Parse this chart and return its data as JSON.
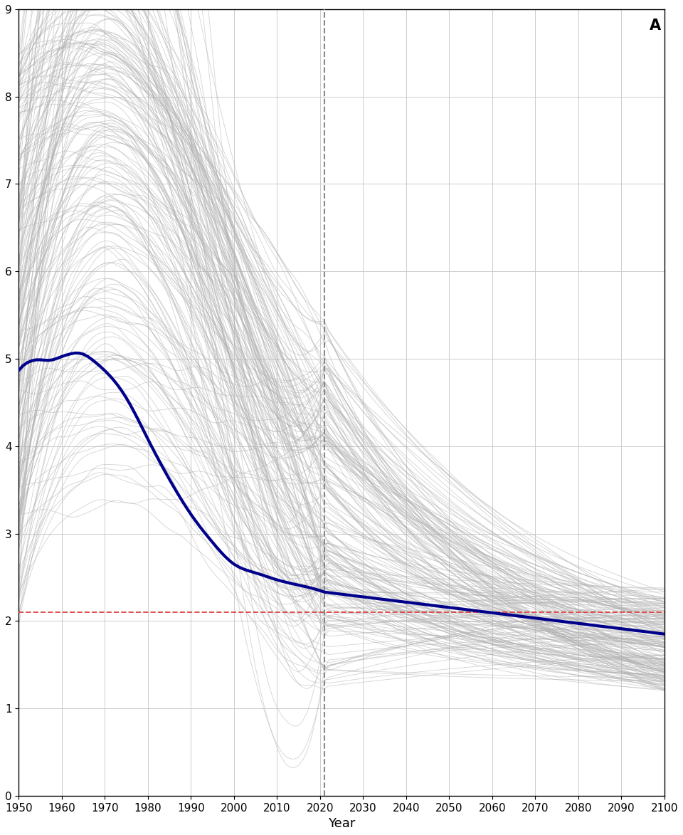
{
  "xlabel": "Year",
  "xlim": [
    1950,
    2100
  ],
  "ylim": [
    0,
    9
  ],
  "yticks": [
    0,
    1,
    2,
    3,
    4,
    5,
    6,
    7,
    8,
    9
  ],
  "xticks": [
    1950,
    1960,
    1970,
    1980,
    1990,
    2000,
    2010,
    2020,
    2030,
    2040,
    2050,
    2060,
    2070,
    2080,
    2090,
    2100
  ],
  "vline_x": 2021,
  "hline_y": 2.1,
  "hline_color": "#d94040",
  "vline_color": "#888888",
  "background_color": "#ffffff",
  "grid_color": "#cccccc",
  "annotation": "A",
  "world_avg_color": "#00008B",
  "country_line_color": "#b0b0b0",
  "world_avg_lw": 3.0,
  "country_line_lw": 0.6,
  "country_line_alpha": 0.55,
  "n_countries": 200
}
